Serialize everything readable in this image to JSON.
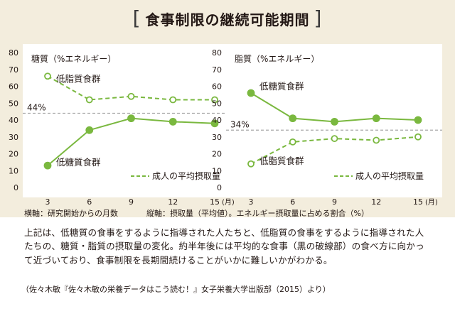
{
  "figure": {
    "title": "食事制限の継続可能期間",
    "bracket_open": "[",
    "bracket_close": "]"
  },
  "chart_data": [
    {
      "type": "line",
      "ylabel": "糖質（%エネルギー）",
      "xunit": "(月)",
      "x": [
        3,
        6,
        9,
        12,
        15
      ],
      "ylim": [
        0,
        80
      ],
      "yticks": [
        0,
        10,
        20,
        30,
        40,
        50,
        60,
        70,
        80
      ],
      "series": [
        {
          "name": "低脂質食群",
          "style": "dashed",
          "marker": "open",
          "values": [
            66,
            52,
            54,
            52,
            52
          ]
        },
        {
          "name": "低糖質食群",
          "style": "solid",
          "marker": "filled",
          "values": [
            13,
            34,
            41,
            39,
            38
          ]
        }
      ],
      "reference": {
        "value": 44,
        "label": "44%"
      },
      "legend": "成人の平均摂取量",
      "legend_position": "bottom-right",
      "labels": [
        {
          "text": "低脂質食群",
          "anchor": "series-0"
        },
        {
          "text": "低糖質食群",
          "anchor": "series-1"
        }
      ],
      "grid": false
    },
    {
      "type": "line",
      "ylabel": "脂質（%エネルギー）",
      "xunit": "(月)",
      "x": [
        3,
        6,
        9,
        12,
        15
      ],
      "ylim": [
        0,
        80
      ],
      "yticks": [
        0,
        10,
        20,
        30,
        40,
        50,
        60,
        70,
        80
      ],
      "series": [
        {
          "name": "低糖質食群",
          "style": "solid",
          "marker": "filled",
          "values": [
            56,
            41,
            39,
            41,
            40
          ]
        },
        {
          "name": "低脂質食群",
          "style": "dashed",
          "marker": "open",
          "values": [
            14,
            27,
            29,
            28,
            30
          ]
        }
      ],
      "reference": {
        "value": 34,
        "label": "34%"
      },
      "legend": "成人の平均摂取量",
      "legend_position": "bottom-right",
      "labels": [
        {
          "text": "低糖質食群",
          "anchor": "series-0"
        },
        {
          "text": "低脂質食群",
          "anchor": "series-1"
        }
      ],
      "grid": false
    }
  ],
  "colors": {
    "series": "#7ab83f",
    "reference": "#a6a6a6",
    "panel": "#f3eddd"
  },
  "notes": {
    "x_axis": "横軸：研究開始からの月数",
    "y_axis": "縦軸：摂取量（平均値）。エネルギー摂取量に占める割合（%）"
  },
  "body_text": "上記は、低糖質の食事をするように指導された人たちと、低脂質の食事をするように指導された人たちの、糖質・脂質の摂取量の変化。約半年後には平均的な食事（黒の破線部）の食べ方に向かって近づいており、食事制限を長期間続けることがいかに難しいかがわかる。",
  "source": "（佐々木敏『佐々木敏の栄養データはこう読む！』女子栄養大学出版部（2015）より）"
}
